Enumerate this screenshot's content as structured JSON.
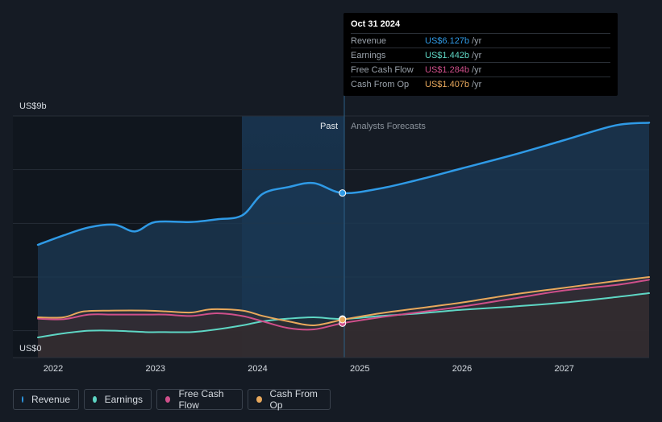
{
  "chart_data": {
    "type": "area",
    "y_axis": {
      "top_label": "US$9b",
      "bottom_label": "US$0",
      "ylim": [
        0,
        9
      ]
    },
    "x_axis": {
      "ticks": [
        "2022",
        "2023",
        "2024",
        "2025",
        "2026",
        "2027"
      ],
      "xlim": [
        2021.85,
        2027.83
      ]
    },
    "sections": {
      "past_label": "Past",
      "forecast_label": "Analysts Forecasts",
      "divider_x": 2024.83
    },
    "series": [
      {
        "name": "Revenue",
        "color": "#2f9ae6",
        "x": [
          2021.85,
          2022.1,
          2022.35,
          2022.6,
          2022.8,
          2023.0,
          2023.35,
          2023.6,
          2023.85,
          2024.05,
          2024.3,
          2024.55,
          2024.83,
          2025.2,
          2025.6,
          2026.0,
          2026.5,
          2027.0,
          2027.5,
          2027.83
        ],
        "y": [
          4.2,
          4.55,
          4.85,
          4.95,
          4.7,
          5.05,
          5.05,
          5.15,
          5.3,
          6.1,
          6.35,
          6.5,
          6.13,
          6.3,
          6.65,
          7.05,
          7.55,
          8.1,
          8.65,
          8.75
        ]
      },
      {
        "name": "Earnings",
        "color": "#5ed6c4",
        "x": [
          2021.85,
          2022.1,
          2022.35,
          2022.6,
          2022.9,
          2023.1,
          2023.35,
          2023.6,
          2023.85,
          2024.05,
          2024.3,
          2024.55,
          2024.83,
          2025.2,
          2025.6,
          2026.0,
          2026.5,
          2027.0,
          2027.5,
          2027.83
        ],
        "y": [
          0.75,
          0.9,
          1.0,
          1.0,
          0.95,
          0.95,
          0.95,
          1.05,
          1.2,
          1.35,
          1.45,
          1.5,
          1.44,
          1.55,
          1.65,
          1.78,
          1.9,
          2.05,
          2.25,
          2.4
        ]
      },
      {
        "name": "Free Cash Flow",
        "color": "#cf4f8a",
        "x": [
          2021.85,
          2022.1,
          2022.35,
          2022.6,
          2022.9,
          2023.1,
          2023.35,
          2023.6,
          2023.85,
          2024.05,
          2024.3,
          2024.55,
          2024.83,
          2025.2,
          2025.6,
          2026.0,
          2026.5,
          2027.0,
          2027.5,
          2027.83
        ],
        "y": [
          1.45,
          1.43,
          1.6,
          1.6,
          1.6,
          1.6,
          1.55,
          1.65,
          1.55,
          1.35,
          1.1,
          1.05,
          1.28,
          1.5,
          1.7,
          1.9,
          2.2,
          2.5,
          2.7,
          2.9
        ]
      },
      {
        "name": "Cash From Op",
        "color": "#e8a85c",
        "x": [
          2021.85,
          2022.1,
          2022.3,
          2022.6,
          2022.9,
          2023.1,
          2023.35,
          2023.55,
          2023.85,
          2024.05,
          2024.3,
          2024.55,
          2024.83,
          2025.2,
          2025.6,
          2026.0,
          2026.5,
          2027.0,
          2027.5,
          2027.83
        ],
        "y": [
          1.5,
          1.5,
          1.72,
          1.75,
          1.75,
          1.72,
          1.68,
          1.8,
          1.75,
          1.55,
          1.35,
          1.2,
          1.41,
          1.65,
          1.85,
          2.05,
          2.35,
          2.6,
          2.85,
          3.0
        ]
      }
    ],
    "grid": true,
    "legend_placement": "bottom-left"
  },
  "tooltip": {
    "date": "Oct 31 2024",
    "unit": "/yr",
    "rows": [
      {
        "label": "Revenue",
        "value": "US$6.127b",
        "color": "#2f9ae6"
      },
      {
        "label": "Earnings",
        "value": "US$1.442b",
        "color": "#5ed6c4"
      },
      {
        "label": "Free Cash Flow",
        "value": "US$1.284b",
        "color": "#cf4f8a"
      },
      {
        "label": "Cash From Op",
        "value": "US$1.407b",
        "color": "#e8a85c"
      }
    ]
  },
  "legend": {
    "items": [
      {
        "label": "Revenue",
        "color": "#2f9ae6"
      },
      {
        "label": "Earnings",
        "color": "#5ed6c4"
      },
      {
        "label": "Free Cash Flow",
        "color": "#cf4f8a"
      },
      {
        "label": "Cash From Op",
        "color": "#e8a85c"
      }
    ]
  }
}
